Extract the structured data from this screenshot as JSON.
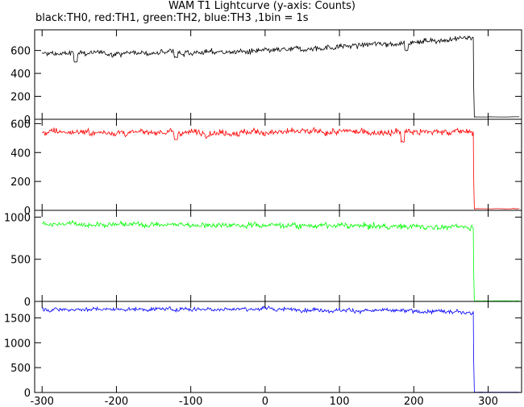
{
  "title": "WAM T1 Lightcurve (y-axis: Counts)",
  "subtitle": "black:TH0, red:TH1, green:TH2, blue:TH3 ,1bin = 1s",
  "colors": {
    "TH0": "#000000",
    "TH1": "#ff0000",
    "TH2": "#00ff00",
    "TH3": "#0000ff"
  },
  "chart_data": {
    "type": "line",
    "xlim": [
      -310,
      345
    ],
    "x_ticks": [
      -300,
      -200,
      -100,
      0,
      100,
      200,
      300
    ],
    "x_tick_labels": [
      "-300",
      "-200",
      "-100",
      "0",
      "100",
      "200",
      "300"
    ],
    "cutoff_x": 280,
    "series": [
      {
        "name": "TH0",
        "color": "#000000",
        "ylim": [
          0,
          780
        ],
        "y_ticks": [
          0,
          200,
          400,
          600
        ],
        "y_tick_labels": [
          "0",
          "200",
          "400",
          "600"
        ],
        "level_start": 570,
        "level_mid": 590,
        "level_end": 710,
        "after_cutoff": 20,
        "noise": 22,
        "dips": [
          [
            -255,
            505
          ],
          [
            -120,
            540
          ],
          [
            190,
            600
          ]
        ]
      },
      {
        "name": "TH1",
        "color": "#ff0000",
        "ylim": [
          0,
          630
        ],
        "y_ticks": [
          0,
          200,
          400,
          600
        ],
        "y_tick_labels": [
          "0",
          "200",
          "400",
          "600"
        ],
        "level_start": 540,
        "level_mid": 540,
        "level_end": 545,
        "after_cutoff": 10,
        "noise": 20,
        "dips": [
          [
            -120,
            490
          ],
          [
            185,
            475
          ]
        ]
      },
      {
        "name": "TH2",
        "color": "#00ff00",
        "ylim": [
          0,
          1080
        ],
        "y_ticks": [
          0,
          500,
          1000
        ],
        "y_tick_labels": [
          "0",
          "500",
          "1000"
        ],
        "level_start": 920,
        "level_mid": 905,
        "level_end": 880,
        "after_cutoff": 5,
        "noise": 28,
        "dips": []
      },
      {
        "name": "TH3",
        "color": "#0000ff",
        "ylim": [
          0,
          1830
        ],
        "y_ticks": [
          0,
          500,
          1000,
          1500
        ],
        "y_tick_labels": [
          "0",
          "500",
          "1000",
          "1500"
        ],
        "level_start": 1670,
        "level_mid": 1680,
        "level_end": 1610,
        "after_cutoff": 5,
        "noise": 35,
        "dips": []
      }
    ]
  }
}
